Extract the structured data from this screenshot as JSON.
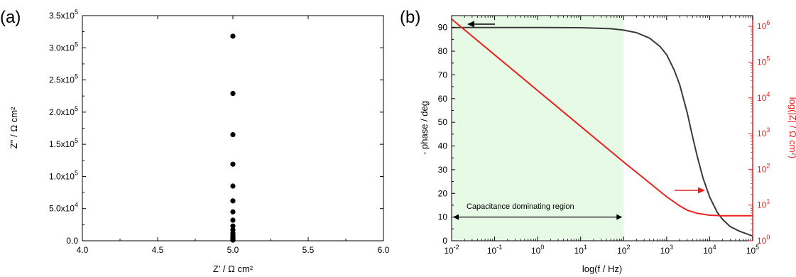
{
  "panel_labels": {
    "a": "(a)",
    "b": "(b)"
  },
  "chart_data": [
    {
      "type": "scatter",
      "panel": "(a)",
      "xlabel": "Z' / Ω cm²",
      "ylabel": "Z'' / Ω cm²",
      "xlim": [
        4.0,
        6.0
      ],
      "ylim": [
        0,
        350000
      ],
      "xticks": [
        {
          "value": 4.0,
          "label": "4.0"
        },
        {
          "value": 4.5,
          "label": "4.5"
        },
        {
          "value": 5.0,
          "label": "5.0"
        },
        {
          "value": 5.5,
          "label": "5.5"
        },
        {
          "value": 6.0,
          "label": "6.0"
        }
      ],
      "yticks": [
        {
          "value": 0,
          "mant": "0.0",
          "exp": ""
        },
        {
          "value": 50000,
          "mant": "5.0x10",
          "exp": "4"
        },
        {
          "value": 100000,
          "mant": "1.0x10",
          "exp": "5"
        },
        {
          "value": 150000,
          "mant": "1.5x10",
          "exp": "5"
        },
        {
          "value": 200000,
          "mant": "2.0x10",
          "exp": "5"
        },
        {
          "value": 250000,
          "mant": "2.5x10",
          "exp": "5"
        },
        {
          "value": 300000,
          "mant": "3.0x10",
          "exp": "5"
        },
        {
          "value": 350000,
          "mant": "3.5x10",
          "exp": "5"
        }
      ],
      "points": {
        "x": [
          5.0,
          5.0,
          5.0,
          5.0,
          5.0,
          5.0,
          5.0,
          5.0,
          5.0,
          5.0,
          5.0,
          5.0,
          5.0,
          5.0,
          5.0,
          5.0,
          5.0,
          5.0
        ],
        "y": [
          318000,
          229000,
          165000,
          119000,
          85000,
          62000,
          45000,
          32000,
          23000,
          17000,
          12000,
          8500,
          6000,
          4300,
          3000,
          2200,
          1500,
          1000
        ]
      },
      "marker_color": "#000000"
    },
    {
      "type": "line",
      "panel": "(b)",
      "xlabel": "log(f / Hz)",
      "ylabel_left": "- phase / deg",
      "ylabel_right": "log(|Z| / Ω cm²)",
      "xscale": "log",
      "xlim": [
        0.01,
        100000
      ],
      "ylim_left": [
        0,
        95
      ],
      "ylim_right_log": [
        1,
        2000000
      ],
      "xticks": [
        {
          "value": 0.01,
          "base": "10",
          "exp": "-2"
        },
        {
          "value": 0.1,
          "base": "10",
          "exp": "-1"
        },
        {
          "value": 1,
          "base": "10",
          "exp": "0"
        },
        {
          "value": 10,
          "base": "10",
          "exp": "1"
        },
        {
          "value": 100,
          "base": "10",
          "exp": "2"
        },
        {
          "value": 1000,
          "base": "10",
          "exp": "3"
        },
        {
          "value": 10000,
          "base": "10",
          "exp": "4"
        },
        {
          "value": 100000,
          "base": "10",
          "exp": "5"
        }
      ],
      "yticks_left": [
        0,
        10,
        20,
        30,
        40,
        50,
        60,
        70,
        80,
        90
      ],
      "yticks_right": [
        {
          "value": 1,
          "base": "10",
          "exp": "0"
        },
        {
          "value": 10,
          "base": "10",
          "exp": "1"
        },
        {
          "value": 100,
          "base": "10",
          "exp": "2"
        },
        {
          "value": 1000,
          "base": "10",
          "exp": "3"
        },
        {
          "value": 10000,
          "base": "10",
          "exp": "4"
        },
        {
          "value": 100000,
          "base": "10",
          "exp": "5"
        },
        {
          "value": 1000000,
          "base": "10",
          "exp": "6"
        }
      ],
      "series": [
        {
          "axis": "left",
          "color": "#3a3a3a",
          "x": [
            0.01,
            0.1,
            1,
            10,
            50,
            100,
            200,
            400,
            700,
            1000,
            1500,
            2000,
            3000,
            4000,
            5000,
            7000,
            10000,
            15000,
            20000,
            30000,
            50000,
            100000
          ],
          "y": [
            90,
            90,
            90,
            89.9,
            89.5,
            88.9,
            87.8,
            85.5,
            82,
            78.5,
            72,
            66,
            54,
            44,
            36.5,
            26.5,
            18.5,
            12,
            9,
            6,
            4,
            2
          ]
        },
        {
          "axis": "right",
          "color": "#e8231e",
          "x": [
            0.01,
            0.1,
            1,
            10,
            100,
            300,
            1000,
            2000,
            3000,
            5000,
            10000,
            20000,
            50000,
            100000
          ],
          "y": [
            1600000,
            160000,
            16000,
            1600,
            160,
            55,
            17,
            9.5,
            7.2,
            5.9,
            5.2,
            5.0,
            5.0,
            5.0
          ]
        }
      ],
      "shaded_region": {
        "x": [
          0.01,
          100
        ],
        "color": "#e6fae6"
      },
      "annotations": [
        {
          "text": "Capacitance dominating region",
          "arrow_x": [
            0.01,
            100
          ],
          "arrow_y": 10
        }
      ]
    }
  ]
}
